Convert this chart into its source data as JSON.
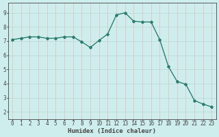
{
  "x": [
    0,
    1,
    2,
    3,
    4,
    5,
    6,
    7,
    8,
    9,
    10,
    11,
    12,
    13,
    14,
    15,
    16,
    17,
    18,
    19,
    20,
    21,
    22,
    23
  ],
  "y": [
    7.1,
    7.2,
    7.3,
    7.3,
    7.2,
    7.2,
    7.3,
    7.3,
    6.95,
    6.55,
    7.05,
    7.5,
    8.85,
    9.0,
    8.4,
    8.35,
    8.35,
    7.1,
    5.2,
    4.15,
    3.95,
    2.8,
    2.55,
    2.35
  ],
  "line_color": "#2d7d6e",
  "marker": "D",
  "marker_size": 2.0,
  "line_width": 1.0,
  "xlabel": "Humidex (Indice chaleur)",
  "xlim": [
    -0.5,
    23.5
  ],
  "ylim": [
    1.5,
    9.7
  ],
  "yticks": [
    2,
    3,
    4,
    5,
    6,
    7,
    8,
    9
  ],
  "xticks": [
    0,
    1,
    2,
    3,
    4,
    5,
    6,
    7,
    8,
    9,
    10,
    11,
    12,
    13,
    14,
    15,
    16,
    17,
    18,
    19,
    20,
    21,
    22,
    23
  ],
  "background_color": "#ceeeed",
  "grid_color_h": "#b8d8d5",
  "grid_color_v": "#e8b8b8",
  "tick_fontsize": 5.5,
  "xlabel_fontsize": 6.5,
  "axis_color": "#444444"
}
